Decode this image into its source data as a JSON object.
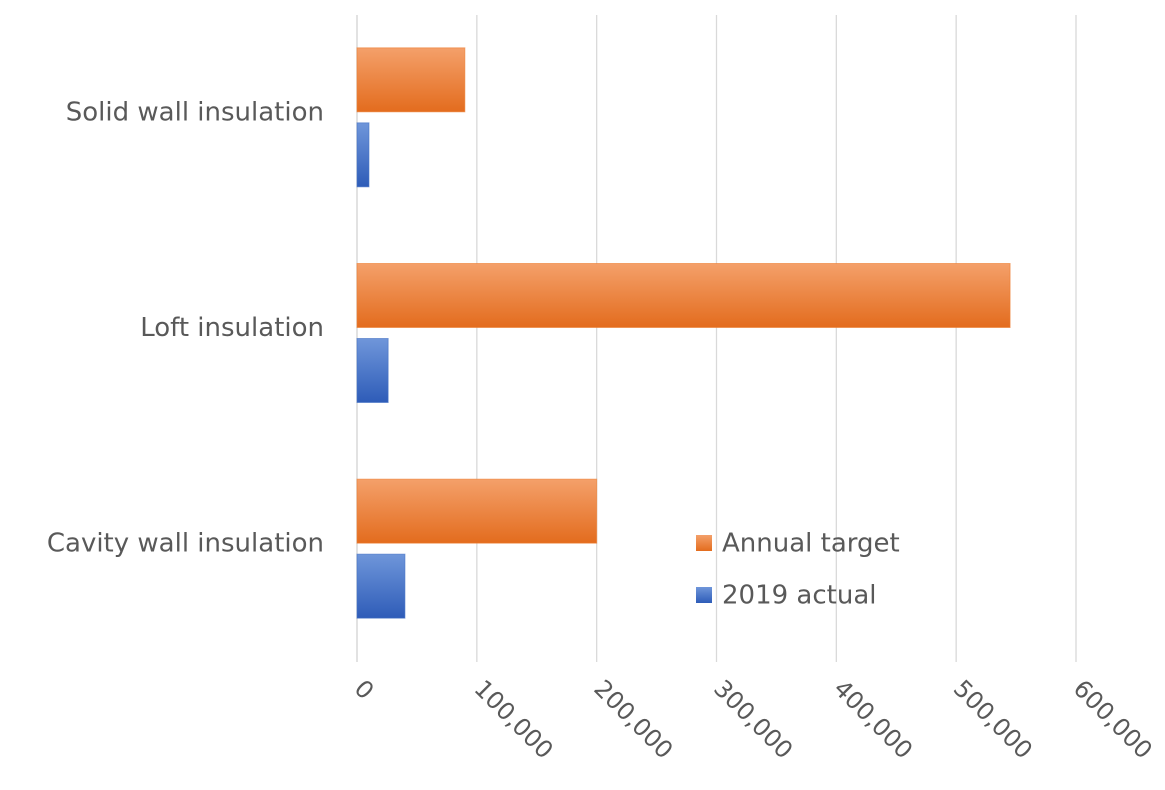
{
  "chart_data": {
    "type": "bar",
    "orientation": "horizontal",
    "categories": [
      "Solid wall insulation",
      "Loft insulation",
      "Cavity wall insulation"
    ],
    "series": [
      {
        "name": "Annual target",
        "values": [
          90000,
          545000,
          200000
        ],
        "color": "#ED7D31"
      },
      {
        "name": "2019 actual",
        "values": [
          10000,
          26000,
          40000
        ],
        "color": "#4472C4"
      }
    ],
    "xlim": [
      0,
      600000
    ],
    "x_ticks": [
      "0",
      "100,000",
      "200,000",
      "300,000",
      "400,000",
      "500,000",
      "600,000"
    ],
    "grid": "vertical",
    "legend_position": "inside-right"
  }
}
